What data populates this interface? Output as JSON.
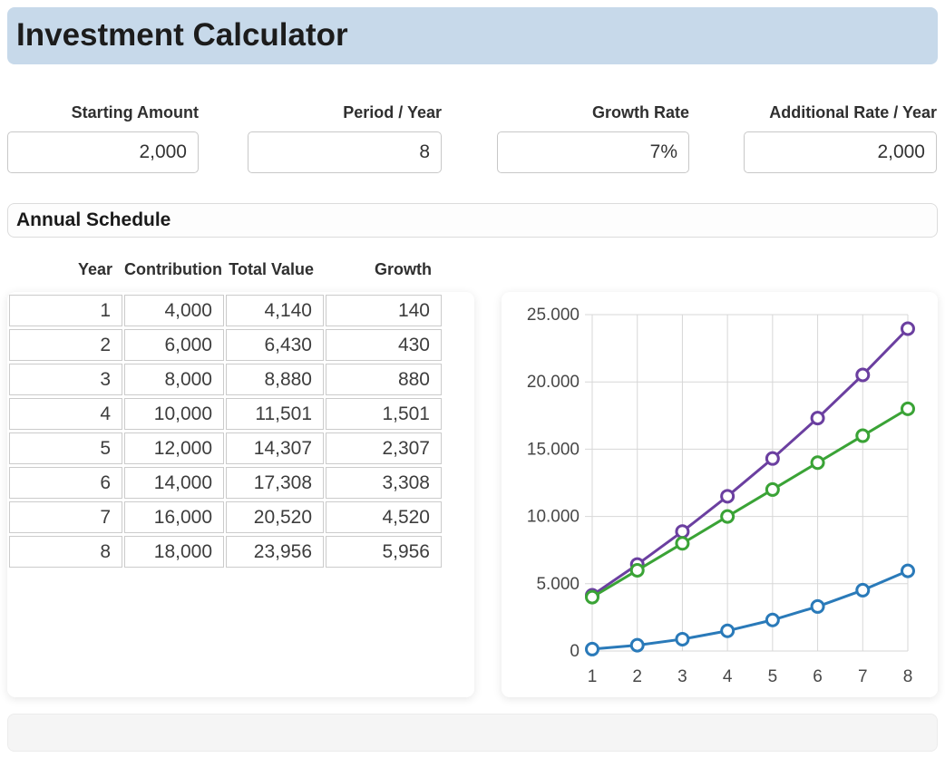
{
  "header": {
    "title": "Investment Calculator"
  },
  "fields": [
    {
      "label": "Starting Amount",
      "value": "2,000"
    },
    {
      "label": "Period / Year",
      "value": "8"
    },
    {
      "label": "Growth Rate",
      "value": "7%"
    },
    {
      "label": "Additional Rate / Year",
      "value": "2,000"
    }
  ],
  "schedule": {
    "title": "Annual Schedule"
  },
  "table": {
    "headers": [
      "Year",
      "Contribution",
      "Total Value",
      "Growth"
    ],
    "rows": [
      [
        "1",
        "4,000",
        "4,140",
        "140"
      ],
      [
        "2",
        "6,000",
        "6,430",
        "430"
      ],
      [
        "3",
        "8,000",
        "8,880",
        "880"
      ],
      [
        "4",
        "10,000",
        "11,501",
        "1,501"
      ],
      [
        "5",
        "12,000",
        "14,307",
        "2,307"
      ],
      [
        "6",
        "14,000",
        "17,308",
        "3,308"
      ],
      [
        "7",
        "16,000",
        "20,520",
        "4,520"
      ],
      [
        "8",
        "18,000",
        "23,956",
        "5,956"
      ]
    ]
  },
  "chart_data": {
    "type": "line",
    "title": "",
    "xlabel": "",
    "ylabel": "",
    "x": [
      1,
      2,
      3,
      4,
      5,
      6,
      7,
      8
    ],
    "x_tick_labels": [
      "1",
      "2",
      "3",
      "4",
      "5",
      "6",
      "7",
      "8"
    ],
    "xlim": [
      1,
      8
    ],
    "ylim": [
      0,
      25000
    ],
    "y_ticks": [
      {
        "value": 0,
        "label": "0"
      },
      {
        "value": 5000,
        "label": "5.000"
      },
      {
        "value": 10000,
        "label": "10.000"
      },
      {
        "value": 15000,
        "label": "15.000"
      },
      {
        "value": 20000,
        "label": "20.000"
      },
      {
        "value": 25000,
        "label": "25.000"
      }
    ],
    "grid": true,
    "legend": "none",
    "marker": {
      "shape": "circle",
      "fill": "#ffffff",
      "radius": 6.5,
      "stroke_width": 3
    },
    "line_width": 3,
    "grid_color": "#d7d7d7",
    "tick_color": "#474747",
    "series": [
      {
        "name": "Total Value",
        "color": "#6b3fa0",
        "values": [
          4140,
          6430,
          8880,
          11501,
          14307,
          17308,
          20520,
          23956
        ]
      },
      {
        "name": "Contribution",
        "color": "#3aa336",
        "values": [
          4000,
          6000,
          8000,
          10000,
          12000,
          14000,
          16000,
          18000
        ]
      },
      {
        "name": "Growth",
        "color": "#2a7ab9",
        "values": [
          140,
          430,
          880,
          1501,
          2307,
          3308,
          4520,
          5956
        ]
      }
    ]
  },
  "colors": {
    "header_bg": "#c7d9ea",
    "card_bg": "#ffffff",
    "footer_bg": "#f5f5f5"
  }
}
